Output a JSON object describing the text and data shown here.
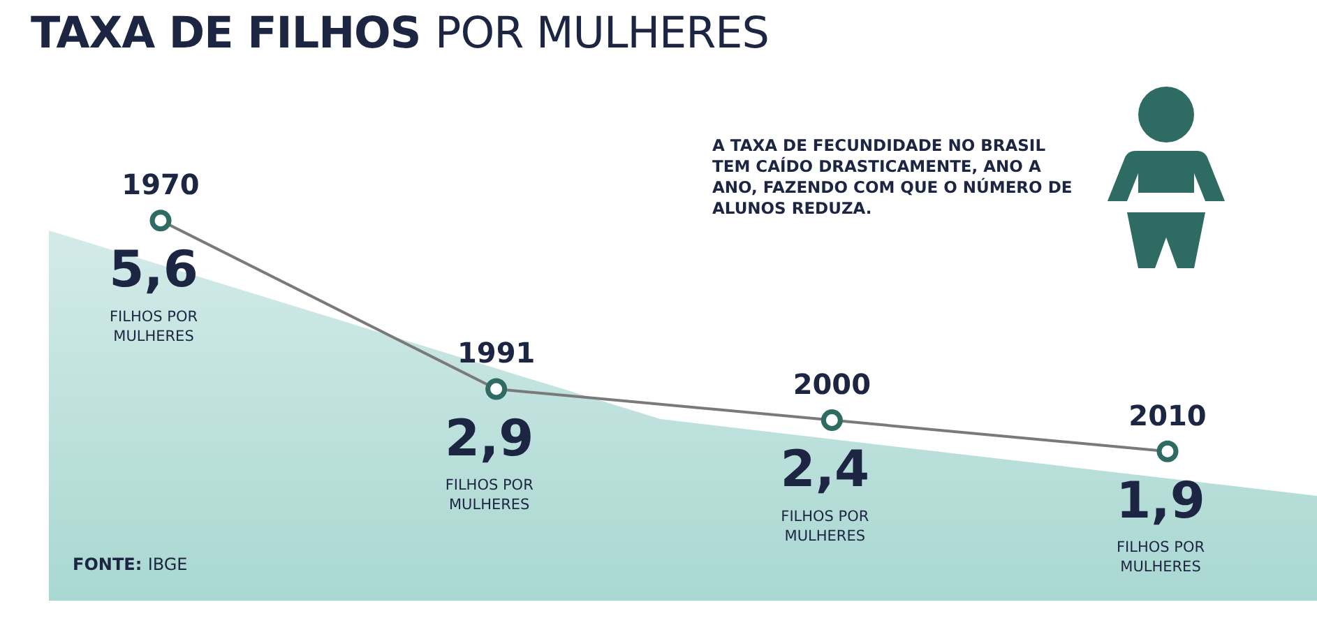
{
  "chart_data": {
    "type": "line",
    "title": "TAXA DE FILHOS POR MULHERES",
    "categories": [
      "1970",
      "1991",
      "2000",
      "2010"
    ],
    "series": [
      {
        "color": "#7a7a7a",
        "values": [
          5.6,
          2.9,
          2.4,
          1.9
        ],
        "value_labels": [
          "5,6",
          "2,9",
          "2,4",
          "1,9"
        ]
      }
    ],
    "marker": "circle",
    "line_style": "solid",
    "legend": false,
    "tick_labels": false,
    "annotations": [
      "FILHOS POR MULHERES",
      "FILHOS POR MULHERES",
      "FILHOS POR MULHERES",
      "FILHOS POR MULHERES",
      "A TAXA DE FECUNDIDADE NO BRASIL TEM CAÍDO DRASTICAMENTE, ANO A ANO, FAZENDO COM QUE O NÚMERO DE ALUNOS REDUZA.",
      "FONTE: IBGE"
    ]
  }
}
